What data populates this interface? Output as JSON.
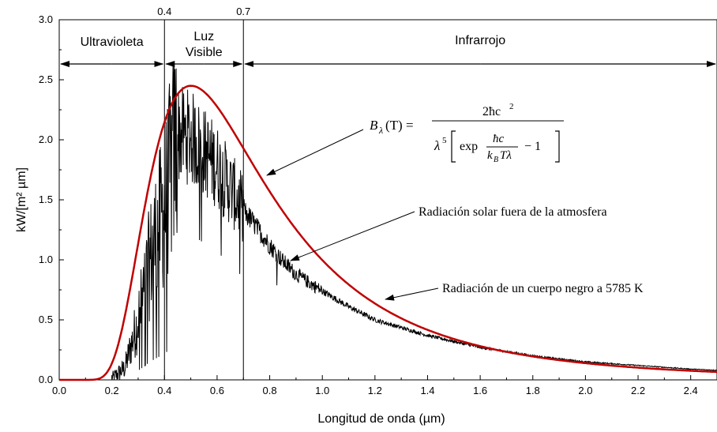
{
  "chart_data": {
    "type": "line",
    "xlabel": "Longitud de onda (µm)",
    "ylabel": "kW/[m² µm]",
    "xlim": [
      0,
      2.5
    ],
    "ylim": [
      0,
      3.0
    ],
    "xticks": [
      "0.0",
      "0.2",
      "0.4",
      "0.6",
      "0.8",
      "1.0",
      "1.2",
      "1.4",
      "1.6",
      "1.8",
      "2.0",
      "2.2",
      "2.4"
    ],
    "yticks": [
      "0.0",
      "0.5",
      "1.0",
      "1.5",
      "2.0",
      "2.5",
      "3.0"
    ],
    "top_ticks": [
      "0.4",
      "0.7"
    ],
    "regions": [
      {
        "label": "Ultravioleta",
        "from": 0,
        "to": 0.4
      },
      {
        "label_line1": "Luz",
        "label_line2": "Visible",
        "from": 0.4,
        "to": 0.7
      },
      {
        "label": "Infrarrojo",
        "from": 0.7,
        "to": 2.5
      }
    ],
    "series": [
      {
        "kind": "blackbody",
        "temperature_K": 5785,
        "color": "#c00000",
        "points": [
          [
            0.1,
            0.0
          ],
          [
            0.15,
            0.003
          ],
          [
            0.2,
            0.09
          ],
          [
            0.25,
            0.52
          ],
          [
            0.3,
            1.2
          ],
          [
            0.35,
            1.78
          ],
          [
            0.4,
            2.16
          ],
          [
            0.45,
            2.38
          ],
          [
            0.5,
            2.45
          ],
          [
            0.55,
            2.41
          ],
          [
            0.6,
            2.3
          ],
          [
            0.65,
            2.15
          ],
          [
            0.7,
            1.98
          ],
          [
            0.8,
            1.64
          ],
          [
            0.9,
            1.33
          ],
          [
            1.0,
            1.07
          ],
          [
            1.2,
            0.7
          ],
          [
            1.4,
            0.47
          ],
          [
            1.6,
            0.32
          ],
          [
            1.8,
            0.225
          ],
          [
            2.0,
            0.163
          ],
          [
            2.2,
            0.12
          ],
          [
            2.4,
            0.09
          ],
          [
            2.5,
            0.078
          ]
        ]
      },
      {
        "kind": "solar",
        "color": "#000000",
        "points": [
          [
            0.2,
            0.01
          ],
          [
            0.25,
            0.1
          ],
          [
            0.3,
            0.5
          ],
          [
            0.35,
            1.05
          ],
          [
            0.4,
            1.45
          ],
          [
            0.45,
            2.05
          ],
          [
            0.5,
            2.02
          ],
          [
            0.55,
            1.9
          ],
          [
            0.6,
            1.78
          ],
          [
            0.65,
            1.6
          ],
          [
            0.7,
            1.42
          ],
          [
            0.75,
            1.27
          ],
          [
            0.8,
            1.12
          ],
          [
            0.85,
            0.99
          ],
          [
            0.9,
            0.88
          ],
          [
            1.0,
            0.74
          ],
          [
            1.1,
            0.61
          ],
          [
            1.2,
            0.5
          ],
          [
            1.4,
            0.37
          ],
          [
            1.6,
            0.27
          ],
          [
            1.8,
            0.2
          ],
          [
            2.0,
            0.15
          ],
          [
            2.2,
            0.12
          ],
          [
            2.4,
            0.09
          ],
          [
            2.5,
            0.08
          ]
        ]
      }
    ],
    "annotations": {
      "formula_lhs": "B",
      "formula_lhs_sub": "λ",
      "formula_lhs_arg": "(T) =",
      "formula_num": "2ħc",
      "formula_num_sup": "2",
      "formula_den_lambda": "λ",
      "formula_den_sup": "5",
      "formula_den_exp": "exp",
      "formula_frac_num": "ħc",
      "formula_frac_den": "k",
      "formula_frac_den_sub": "B",
      "formula_frac_den_tail": "Tλ",
      "formula_minus_one": "− 1",
      "solar_label": "Radiación solar fuera de la atmosfera",
      "blackbody_label": "Radiación de un cuerpo negro a 5785 K"
    }
  }
}
